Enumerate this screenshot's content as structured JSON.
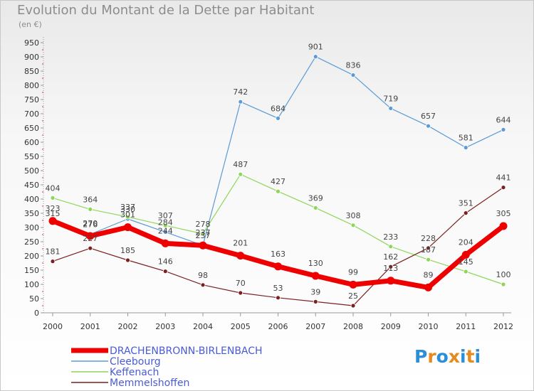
{
  "title": "Evolution du Montant de la Dette par Habitant",
  "subtitle": "(en €)",
  "logo": {
    "text": "Proxiti",
    "letters": [
      "P",
      "r",
      "o",
      "x",
      "i",
      "t",
      "i"
    ],
    "colors": [
      "#2a8fd8",
      "#e58a1f",
      "#2a8fd8",
      "#e58a1f",
      "#2a8fd8",
      "#e58a1f",
      "#2a8fd8"
    ]
  },
  "chart_data": {
    "type": "line",
    "x": [
      "2000",
      "2001",
      "2002",
      "2003",
      "2004",
      "2005",
      "2006",
      "2007",
      "2008",
      "2009",
      "2010",
      "2011",
      "2012"
    ],
    "ylim": [
      0,
      950
    ],
    "yticks": [
      0,
      50,
      100,
      150,
      200,
      250,
      300,
      350,
      400,
      450,
      500,
      550,
      600,
      650,
      700,
      750,
      800,
      850,
      900,
      950
    ],
    "grid": false,
    "legend_placement": "bottom-left",
    "series": [
      {
        "name": "Cleebourg",
        "color": "#5b9bd5",
        "width": 1.2,
        "marker": 3,
        "values": [
          315,
          276,
          330,
          284,
          237,
          742,
          684,
          901,
          836,
          719,
          657,
          581,
          644
        ]
      },
      {
        "name": "Keffenach",
        "color": "#8ed65a",
        "width": 1.2,
        "marker": 3,
        "values": [
          404,
          364,
          337,
          307,
          278,
          487,
          427,
          369,
          308,
          233,
          187,
          145,
          100
        ]
      },
      {
        "name": "Memmelshoffen",
        "color": "#7b2020",
        "width": 1.2,
        "marker": 3,
        "values": [
          181,
          227,
          185,
          146,
          98,
          70,
          53,
          39,
          25,
          162,
          228,
          351,
          441
        ]
      },
      {
        "name": "DRACHENBRONN-BIRLENBACH",
        "color": "#ee0000",
        "width": 7,
        "marker": 5.5,
        "values": [
          323,
          270,
          301,
          244,
          237,
          201,
          163,
          130,
          99,
          113,
          89,
          204,
          305
        ]
      }
    ],
    "legend_order": [
      "DRACHENBRONN-BIRLENBACH",
      "Cleebourg",
      "Keffenach",
      "Memmelshoffen"
    ]
  }
}
